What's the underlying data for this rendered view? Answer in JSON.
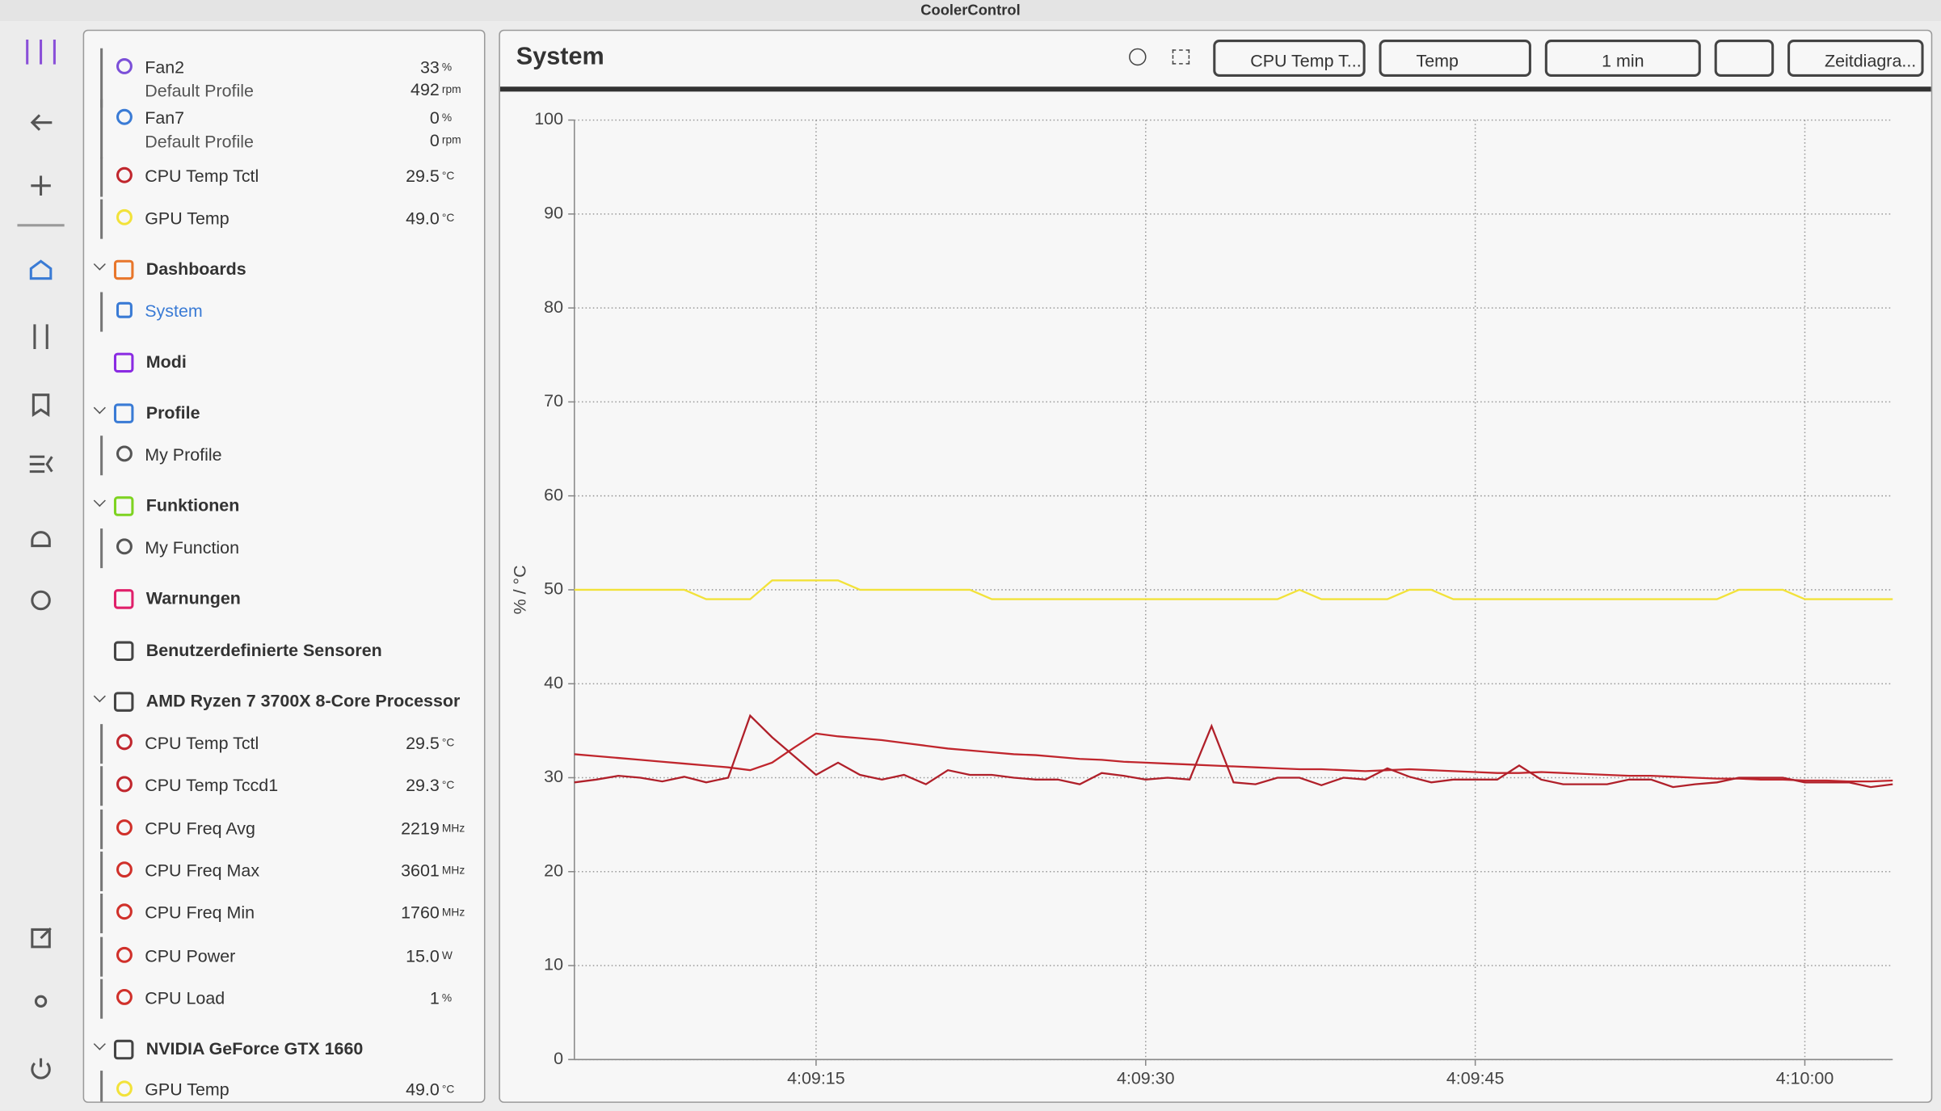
{
  "window_title": "CoolerControl",
  "sidebar": {
    "rows": [
      {
        "label": "Fan2",
        "sub": "Default Profile",
        "value": "33",
        "unit": "%",
        "value2": "492",
        "unit2": "rpm"
      },
      {
        "label": "Fan7",
        "sub": "Default Profile",
        "value": "0",
        "unit": "%",
        "value2": "0",
        "unit2": "rpm"
      },
      {
        "label": "CPU Temp Tctl",
        "value": "29.5",
        "unit": "°C"
      },
      {
        "label": "GPU Temp",
        "value": "49.0",
        "unit": "°C"
      },
      {
        "label": "Dashboards"
      },
      {
        "label": "System"
      },
      {
        "label": "Modi"
      },
      {
        "label": "Profile"
      },
      {
        "label": "My Profile"
      },
      {
        "label": "Funktionen"
      },
      {
        "label": "My Function"
      },
      {
        "label": "Warnungen"
      },
      {
        "label": "Benutzerdefinierte Sensoren"
      },
      {
        "label": "AMD Ryzen 7 3700X 8-Core Processor"
      },
      {
        "label": "CPU Temp Tctl",
        "value": "29.5",
        "unit": "°C"
      },
      {
        "label": "CPU Temp Tccd1",
        "value": "29.3",
        "unit": "°C"
      },
      {
        "label": "CPU Freq Avg",
        "value": "2219",
        "unit": "MHz"
      },
      {
        "label": "CPU Freq Max",
        "value": "3601",
        "unit": "MHz"
      },
      {
        "label": "CPU Freq Min",
        "value": "1760",
        "unit": "MHz"
      },
      {
        "label": "CPU Power",
        "value": "15.0",
        "unit": "W"
      },
      {
        "label": "CPU Load",
        "value": "1",
        "unit": "%"
      },
      {
        "label": "NVIDIA GeForce GTX 1660"
      },
      {
        "label": "GPU Temp",
        "value": "49.0",
        "unit": "°C"
      }
    ]
  },
  "toolbar": {
    "title": "System",
    "filter_sensor": "CPU Temp T...",
    "filter_type": "Temp",
    "duration": "1 min",
    "chart_type": "Zeitdiagra..."
  },
  "chart_data": {
    "type": "line",
    "y_label": "% / °C",
    "x": [
      4,
      5,
      6,
      7,
      8,
      9,
      10,
      11,
      12,
      13,
      14,
      15,
      16,
      17,
      18,
      19,
      20,
      21,
      22,
      23,
      24,
      25,
      26,
      27,
      28,
      29,
      30,
      31,
      32,
      33,
      34,
      35,
      36,
      37,
      38,
      39,
      40,
      41,
      42,
      43,
      44,
      45,
      46,
      47,
      48,
      49,
      50,
      51,
      52,
      53,
      54,
      55,
      56,
      57,
      58,
      59,
      60,
      61,
      62,
      63,
      64
    ],
    "xlim": [
      4,
      64
    ],
    "xticks": [
      {
        "value": 15,
        "label": "4:09:15"
      },
      {
        "value": 30,
        "label": "4:09:30"
      },
      {
        "value": 45,
        "label": "4:09:45"
      },
      {
        "value": 60,
        "label": "4:10:00"
      }
    ],
    "ylim": [
      0,
      100
    ],
    "yticks": [
      0,
      10,
      20,
      30,
      40,
      50,
      60,
      70,
      80,
      90,
      100
    ],
    "grid": true,
    "series": [
      {
        "color": "#f2e23a",
        "values": [
          50,
          50,
          50,
          50,
          50,
          50,
          49,
          49,
          49,
          51,
          51,
          51,
          51,
          50,
          50,
          50,
          50,
          50,
          50,
          49,
          49,
          49,
          49,
          49,
          49,
          49,
          49,
          49,
          49,
          49,
          49,
          49,
          49,
          50,
          49,
          49,
          49,
          49,
          50,
          50,
          49,
          49,
          49,
          49,
          49,
          49,
          49,
          49,
          49,
          49,
          49,
          49,
          49,
          50,
          50,
          50,
          49,
          49,
          49,
          49,
          49
        ]
      },
      {
        "color": "#c0262d",
        "values": [
          32.5,
          32.3,
          32.1,
          31.9,
          31.7,
          31.5,
          31.3,
          31.1,
          30.8,
          31.6,
          33.2,
          34.7,
          34.4,
          34.2,
          34.0,
          33.7,
          33.4,
          33.1,
          32.9,
          32.7,
          32.5,
          32.4,
          32.2,
          32.0,
          31.9,
          31.7,
          31.6,
          31.5,
          31.4,
          31.3,
          31.2,
          31.1,
          31.0,
          30.9,
          30.9,
          30.8,
          30.7,
          30.8,
          30.9,
          30.8,
          30.7,
          30.6,
          30.5,
          30.5,
          30.6,
          30.5,
          30.4,
          30.3,
          30.2,
          30.2,
          30.1,
          30.0,
          29.9,
          29.9,
          29.8,
          29.8,
          29.7,
          29.7,
          29.6,
          29.6,
          29.7
        ]
      },
      {
        "color": "#b0202a",
        "values": [
          29.5,
          29.8,
          30.2,
          30.0,
          29.6,
          30.1,
          29.5,
          30.0,
          36.6,
          34.3,
          32.3,
          30.3,
          31.6,
          30.3,
          29.8,
          30.3,
          29.3,
          30.8,
          30.3,
          30.3,
          30.0,
          29.8,
          29.8,
          29.3,
          30.5,
          30.2,
          29.8,
          30.0,
          29.8,
          35.5,
          29.5,
          29.3,
          30.0,
          30.0,
          29.2,
          30.0,
          29.8,
          31.0,
          30.1,
          29.5,
          29.8,
          29.8,
          29.8,
          31.3,
          29.8,
          29.3,
          29.3,
          29.3,
          29.8,
          29.8,
          29.0,
          29.3,
          29.5,
          30.0,
          30.0,
          30.0,
          29.5,
          29.5,
          29.5,
          29.0,
          29.3
        ]
      }
    ]
  }
}
